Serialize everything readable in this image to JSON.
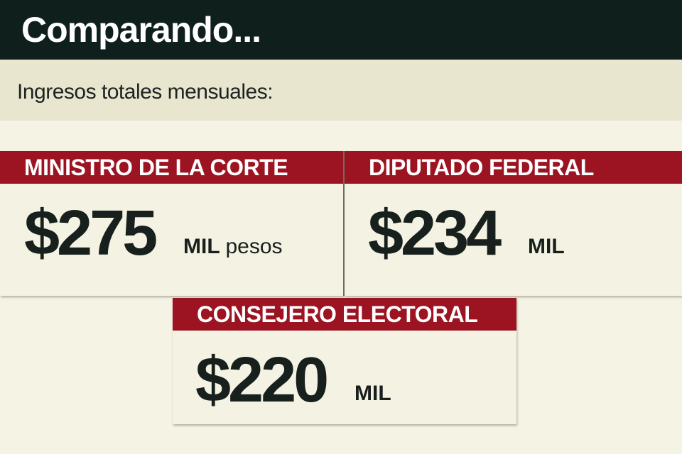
{
  "header": {
    "title": "Comparando..."
  },
  "subtitle": "Ingresos totales mensuales:",
  "cards": [
    {
      "label": "MINISTRO DE LA CORTE",
      "amount": "$275",
      "unit": "MIL",
      "currency": "pesos"
    },
    {
      "label": "DIPUTADO FEDERAL",
      "amount": "$234",
      "unit": "MIL"
    },
    {
      "label": "CONSEJERO ELECTORAL",
      "amount": "$220",
      "unit": "MIL"
    }
  ],
  "colors": {
    "header_bg": "#0f1f1c",
    "subtitle_band": "#e8e6cf",
    "background": "#f5f3e4",
    "label_red": "#9c1422",
    "amount_text": "#17201c"
  }
}
